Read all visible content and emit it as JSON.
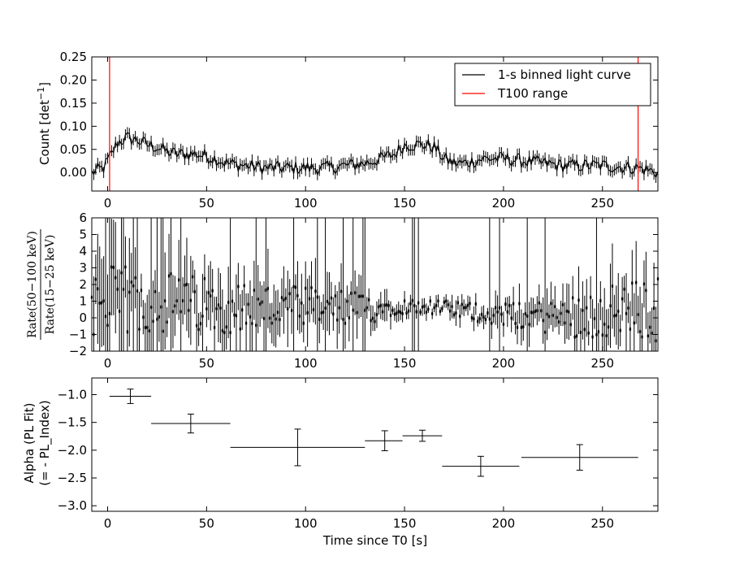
{
  "chart_data": [
    {
      "type": "line",
      "panel": "top",
      "ylabel": "Count [det⁻¹]",
      "xlim": [
        -8,
        278
      ],
      "ylim": [
        -0.04,
        0.25
      ],
      "xticks": [
        0,
        50,
        100,
        150,
        200,
        250
      ],
      "yticks": [
        0.0,
        0.05,
        0.1,
        0.15,
        0.2,
        0.25
      ],
      "ytick_labels": [
        "0.00",
        "0.05",
        "0.10",
        "0.15",
        "0.20",
        "0.25"
      ],
      "legend": {
        "position": "top-right",
        "entries": [
          {
            "label": "1-s binned light curve",
            "color": "#000000"
          },
          {
            "label": "T100 range",
            "color": "#ff0000"
          }
        ]
      },
      "series": [
        {
          "name": "1-s binned light curve",
          "color": "#000000",
          "binning_s": 1,
          "profile_x": [
            -8,
            -2,
            2,
            5,
            10,
            15,
            20,
            25,
            30,
            35,
            40,
            45,
            50,
            55,
            60,
            70,
            80,
            90,
            100,
            110,
            120,
            130,
            138,
            145,
            150,
            155,
            160,
            165,
            170,
            175,
            180,
            190,
            200,
            210,
            220,
            230,
            240,
            250,
            260,
            268,
            278
          ],
          "profile_y": [
            0.0,
            0.01,
            0.04,
            0.065,
            0.075,
            0.07,
            0.06,
            0.055,
            0.045,
            0.04,
            0.04,
            0.04,
            0.035,
            0.03,
            0.02,
            0.015,
            0.01,
            0.01,
            0.01,
            0.01,
            0.015,
            0.02,
            0.03,
            0.04,
            0.06,
            0.06,
            0.06,
            0.055,
            0.03,
            0.02,
            0.02,
            0.03,
            0.03,
            0.025,
            0.02,
            0.015,
            0.015,
            0.015,
            0.012,
            0.01,
            0.0
          ],
          "error_bar": 0.012
        },
        {
          "name": "T100 range",
          "color": "#ff0000",
          "x": [
            1,
            268
          ]
        }
      ]
    },
    {
      "type": "scatter",
      "panel": "middle",
      "ylabel": "Rate(50−100 keV) / Rate(15−25 keV)",
      "xlim": [
        -8,
        278
      ],
      "ylim": [
        -2,
        6
      ],
      "xticks": [
        0,
        50,
        100,
        150,
        200,
        250
      ],
      "yticks": [
        -2,
        -1,
        0,
        1,
        2,
        3,
        4,
        5,
        6
      ],
      "ytick_labels": [
        "−2",
        "−1",
        "0",
        "1",
        "2",
        "3",
        "4",
        "5",
        "6"
      ],
      "series": [
        {
          "name": "hardness ratio",
          "color": "#000000",
          "profile_x": [
            -8,
            20,
            60,
            100,
            130,
            145,
            160,
            175,
            190,
            210,
            230,
            250,
            278
          ],
          "profile_y": [
            1.0,
            1.0,
            0.7,
            0.5,
            0.5,
            0.7,
            0.7,
            0.5,
            0.3,
            0.1,
            0.1,
            0.3,
            0.5
          ],
          "scatter_scale": [
            2.2,
            2.0,
            1.6,
            1.4,
            1.0,
            0.5,
            0.4,
            0.5,
            0.6,
            0.8,
            1.2,
            1.6,
            2.0
          ]
        }
      ]
    },
    {
      "type": "scatter",
      "panel": "bottom",
      "xlabel": "Time since T0 [s]",
      "ylabel_lines": [
        "Alpha (PL Fit)",
        "(= - PL_Index)"
      ],
      "xlim": [
        -8,
        278
      ],
      "ylim": [
        -3.1,
        -0.7
      ],
      "xticks": [
        0,
        50,
        100,
        150,
        200,
        250
      ],
      "yticks": [
        -3.0,
        -2.5,
        -2.0,
        -1.5,
        -1.0
      ],
      "ytick_labels": [
        "−3.0",
        "−2.5",
        "−2.0",
        "−1.5",
        "−1.0"
      ],
      "series": [
        {
          "name": "alpha",
          "color": "#000000",
          "x": [
            11.5,
            42,
            96,
            140,
            159,
            188.5,
            238.5
          ],
          "x_lo": [
            1,
            22,
            62,
            130,
            149,
            169,
            209
          ],
          "x_hi": [
            22,
            62,
            130,
            149,
            169,
            208,
            268
          ],
          "y": [
            -1.03,
            -1.52,
            -1.95,
            -1.83,
            -1.74,
            -2.29,
            -2.13
          ],
          "y_err": [
            0.13,
            0.17,
            0.33,
            0.18,
            0.1,
            0.18,
            0.23
          ]
        }
      ]
    }
  ],
  "x_tick_labels": [
    "0",
    "50",
    "100",
    "150",
    "200",
    "250"
  ]
}
